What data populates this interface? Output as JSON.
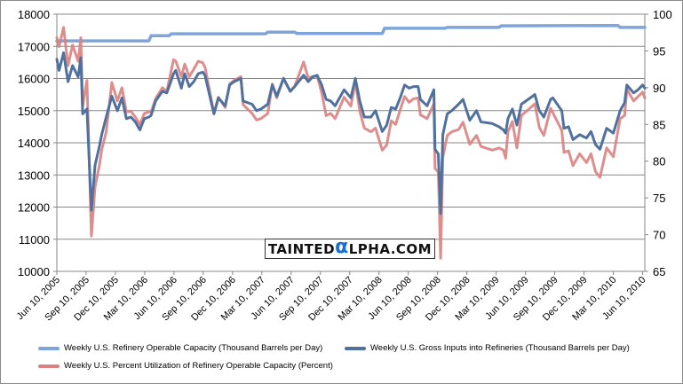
{
  "chart_data": {
    "type": "line",
    "title": "",
    "x_unit": "weeks since first tick",
    "x_tick_labels": [
      "Jun 10, 2005",
      "Sep 10, 2005",
      "Dec 10, 2005",
      "Mar 10, 2006",
      "Jun 10, 2006",
      "Sep 10, 2006",
      "Dec 10, 2006",
      "Mar 10, 2007",
      "Jun 10, 2007",
      "Sep 10, 2007",
      "Dec 10, 2007",
      "Mar 10, 2008",
      "Jun 10, 2008",
      "Sep 10, 2008",
      "Dec 10, 2008",
      "Mar 10, 2009",
      "Jun 10, 2009",
      "Sep 10, 2009",
      "Dec 10, 2009",
      "Mar 10, 2010",
      "Jun 10, 2010"
    ],
    "x_range": [
      0,
      262
    ],
    "x_tick_span_weeks": 261,
    "y_left": {
      "range": [
        10000,
        18000
      ],
      "ticks": [
        "10000",
        "11000",
        "12000",
        "13000",
        "14000",
        "15000",
        "16000",
        "17000",
        "18000"
      ]
    },
    "y_right": {
      "range": [
        65,
        100
      ],
      "ticks": [
        "65",
        "70",
        "75",
        "80",
        "85",
        "90",
        "95",
        "100"
      ]
    },
    "grid": true,
    "legend_position": "bottom",
    "series": [
      {
        "name": "Weekly U.S. Refinery Operable Capacity  (Thousand Barrels per Day)",
        "axis": "left",
        "color": "#7da5da",
        "points": [
          [
            0,
            17170
          ],
          [
            41,
            17170
          ],
          [
            42,
            17330
          ],
          [
            50,
            17330
          ],
          [
            51,
            17390
          ],
          [
            93,
            17390
          ],
          [
            94,
            17440
          ],
          [
            106,
            17440
          ],
          [
            107,
            17400
          ],
          [
            145,
            17400
          ],
          [
            146,
            17560
          ],
          [
            173,
            17560
          ],
          [
            174,
            17590
          ],
          [
            197,
            17590
          ],
          [
            198,
            17640
          ],
          [
            250,
            17650
          ],
          [
            251,
            17590
          ],
          [
            262,
            17590
          ]
        ]
      },
      {
        "name": "Weekly U.S. Gross Inputs into Refineries  (Thousand Barrels per Day)",
        "axis": "left",
        "color": "#50709e",
        "points": [
          [
            0,
            16600
          ],
          [
            1,
            16250
          ],
          [
            3,
            16800
          ],
          [
            5,
            15900
          ],
          [
            7,
            16400
          ],
          [
            9.5,
            16050
          ],
          [
            10.7,
            16650
          ],
          [
            11.5,
            14900
          ],
          [
            13.4,
            15050
          ],
          [
            15.4,
            11900
          ],
          [
            17,
            13300
          ],
          [
            19,
            13900
          ],
          [
            20,
            14250
          ],
          [
            22,
            14800
          ],
          [
            24.5,
            15450
          ],
          [
            27,
            15000
          ],
          [
            29,
            15400
          ],
          [
            31,
            14750
          ],
          [
            33,
            14800
          ],
          [
            35,
            14650
          ],
          [
            37,
            14400
          ],
          [
            39,
            14750
          ],
          [
            41,
            14800
          ],
          [
            42,
            14850
          ],
          [
            44,
            15300
          ],
          [
            47,
            15600
          ],
          [
            49,
            15550
          ],
          [
            52,
            16150
          ],
          [
            53,
            16250
          ],
          [
            55.5,
            15700
          ],
          [
            57,
            16150
          ],
          [
            59,
            15750
          ],
          [
            61,
            15900
          ],
          [
            63,
            16150
          ],
          [
            65,
            16200
          ],
          [
            66,
            16100
          ],
          [
            68,
            15500
          ],
          [
            70,
            14900
          ],
          [
            72,
            15400
          ],
          [
            75,
            15150
          ],
          [
            77,
            15800
          ],
          [
            79,
            15900
          ],
          [
            82,
            16000
          ],
          [
            83,
            15300
          ],
          [
            87,
            15200
          ],
          [
            89,
            15000
          ],
          [
            91,
            15050
          ],
          [
            94,
            15200
          ],
          [
            96,
            15800
          ],
          [
            98,
            15450
          ],
          [
            101,
            16000
          ],
          [
            104,
            15600
          ],
          [
            106,
            15750
          ],
          [
            110,
            16100
          ],
          [
            112,
            15900
          ],
          [
            114,
            16050
          ],
          [
            116,
            16100
          ],
          [
            118,
            15800
          ],
          [
            120,
            15350
          ],
          [
            122,
            15300
          ],
          [
            124,
            15150
          ],
          [
            128,
            15650
          ],
          [
            131,
            15400
          ],
          [
            133,
            16000
          ],
          [
            135,
            15300
          ],
          [
            137,
            14800
          ],
          [
            140,
            14800
          ],
          [
            142,
            15000
          ],
          [
            145,
            14350
          ],
          [
            147,
            14550
          ],
          [
            149,
            15100
          ],
          [
            151,
            15050
          ],
          [
            153,
            15400
          ],
          [
            155,
            15800
          ],
          [
            157,
            15700
          ],
          [
            159,
            15750
          ],
          [
            161,
            15750
          ],
          [
            162,
            15350
          ],
          [
            165,
            15150
          ],
          [
            168,
            15650
          ],
          [
            168.5,
            13800
          ],
          [
            170,
            13650
          ],
          [
            171,
            11800
          ],
          [
            172,
            14250
          ],
          [
            174,
            14900
          ],
          [
            176,
            15000
          ],
          [
            179,
            15200
          ],
          [
            181,
            15350
          ],
          [
            184,
            14700
          ],
          [
            187,
            15000
          ],
          [
            189,
            14650
          ],
          [
            194,
            14600
          ],
          [
            197,
            14500
          ],
          [
            199,
            14400
          ],
          [
            200,
            14300
          ],
          [
            201,
            14750
          ],
          [
            203,
            15050
          ],
          [
            205,
            14550
          ],
          [
            207,
            15200
          ],
          [
            210,
            15350
          ],
          [
            213,
            15500
          ],
          [
            215,
            15000
          ],
          [
            217,
            14800
          ],
          [
            220,
            15350
          ],
          [
            221,
            15400
          ],
          [
            225,
            15000
          ],
          [
            226,
            14450
          ],
          [
            228,
            14500
          ],
          [
            230,
            14100
          ],
          [
            233,
            14250
          ],
          [
            236,
            14150
          ],
          [
            238,
            14350
          ],
          [
            240,
            13950
          ],
          [
            242,
            13800
          ],
          [
            245,
            14450
          ],
          [
            248,
            14300
          ],
          [
            251,
            15000
          ],
          [
            253,
            15250
          ],
          [
            254,
            15800
          ],
          [
            257,
            15550
          ],
          [
            259,
            15650
          ],
          [
            261,
            15800
          ],
          [
            262,
            15700
          ]
        ]
      },
      {
        "name": "Weekly U.S. Percent Utilization of Refinery Operable Capacity  (Percent)",
        "axis": "right",
        "color": "#d98280",
        "points": [
          [
            0,
            96.8
          ],
          [
            1,
            95.6
          ],
          [
            3,
            98.2
          ],
          [
            5,
            93
          ],
          [
            7,
            95.8
          ],
          [
            9.5,
            93.6
          ],
          [
            10.7,
            96.8
          ],
          [
            11.5,
            87.5
          ],
          [
            13.4,
            91
          ],
          [
            15.4,
            69.8
          ],
          [
            17,
            76.5
          ],
          [
            19,
            79.5
          ],
          [
            20,
            81.5
          ],
          [
            22,
            84
          ],
          [
            24.5,
            90.7
          ],
          [
            27,
            88.2
          ],
          [
            29,
            90
          ],
          [
            31,
            86.7
          ],
          [
            33,
            86.8
          ],
          [
            35,
            86
          ],
          [
            37,
            85
          ],
          [
            39,
            86.5
          ],
          [
            41,
            86.7
          ],
          [
            42,
            86.7
          ],
          [
            44,
            88.5
          ],
          [
            47,
            90
          ],
          [
            49,
            89.5
          ],
          [
            52,
            93.8
          ],
          [
            53,
            93.6
          ],
          [
            55.5,
            91.5
          ],
          [
            57,
            93.2
          ],
          [
            59,
            91.5
          ],
          [
            61,
            92.5
          ],
          [
            63,
            93.6
          ],
          [
            65,
            93.4
          ],
          [
            66,
            92.8
          ],
          [
            68,
            89.7
          ],
          [
            70,
            86.5
          ],
          [
            72,
            88.7
          ],
          [
            75,
            87.3
          ],
          [
            77,
            90.5
          ],
          [
            79,
            91
          ],
          [
            82,
            91.5
          ],
          [
            83,
            87.7
          ],
          [
            87,
            86.5
          ],
          [
            89,
            85.6
          ],
          [
            91,
            85.8
          ],
          [
            94,
            86.5
          ],
          [
            96,
            90.5
          ],
          [
            98,
            88.6
          ],
          [
            101,
            91.3
          ],
          [
            104,
            89.5
          ],
          [
            106,
            90.2
          ],
          [
            110,
            93.5
          ],
          [
            112,
            91.3
          ],
          [
            114,
            91.5
          ],
          [
            116,
            91.6
          ],
          [
            118,
            89.3
          ],
          [
            120,
            86.2
          ],
          [
            122,
            86.5
          ],
          [
            124,
            85.8
          ],
          [
            128,
            88.7
          ],
          [
            131,
            87.5
          ],
          [
            133,
            90.8
          ],
          [
            135,
            86.8
          ],
          [
            137,
            84.5
          ],
          [
            140,
            84
          ],
          [
            142,
            84.5
          ],
          [
            145,
            81.5
          ],
          [
            147,
            82.2
          ],
          [
            149,
            85.5
          ],
          [
            151,
            85
          ],
          [
            153,
            87
          ],
          [
            155,
            88.8
          ],
          [
            157,
            88
          ],
          [
            159,
            88.5
          ],
          [
            161,
            88.6
          ],
          [
            162,
            86.3
          ],
          [
            165,
            85.8
          ],
          [
            168,
            87.8
          ],
          [
            168.5,
            79
          ],
          [
            170,
            78.5
          ],
          [
            171,
            66.8
          ],
          [
            172,
            80.5
          ],
          [
            174,
            83.5
          ],
          [
            176,
            84
          ],
          [
            179,
            84.3
          ],
          [
            181,
            85.3
          ],
          [
            184,
            82.3
          ],
          [
            187,
            83.5
          ],
          [
            189,
            82
          ],
          [
            194,
            81.5
          ],
          [
            197,
            81.8
          ],
          [
            199,
            81.5
          ],
          [
            200,
            80.4
          ],
          [
            201,
            84
          ],
          [
            203,
            85.4
          ],
          [
            205,
            81.8
          ],
          [
            207,
            86.2
          ],
          [
            210,
            87
          ],
          [
            213,
            87.8
          ],
          [
            215,
            84.6
          ],
          [
            217,
            83.5
          ],
          [
            220,
            87.2
          ],
          [
            221,
            86.6
          ],
          [
            225,
            84.2
          ],
          [
            226,
            81.2
          ],
          [
            228,
            81.4
          ],
          [
            230,
            79.4
          ],
          [
            233,
            81
          ],
          [
            236,
            79.8
          ],
          [
            238,
            81
          ],
          [
            240,
            78.6
          ],
          [
            242,
            77.8
          ],
          [
            245,
            81.8
          ],
          [
            248,
            80.6
          ],
          [
            251,
            85.8
          ],
          [
            253,
            86.2
          ],
          [
            254,
            89.8
          ],
          [
            257,
            88.2
          ],
          [
            259,
            88.8
          ],
          [
            261,
            89.4
          ],
          [
            262,
            88.6
          ]
        ]
      }
    ]
  },
  "watermark": {
    "pre": "TAINTED",
    "alpha": "α",
    "post": "LPHA.COM"
  }
}
